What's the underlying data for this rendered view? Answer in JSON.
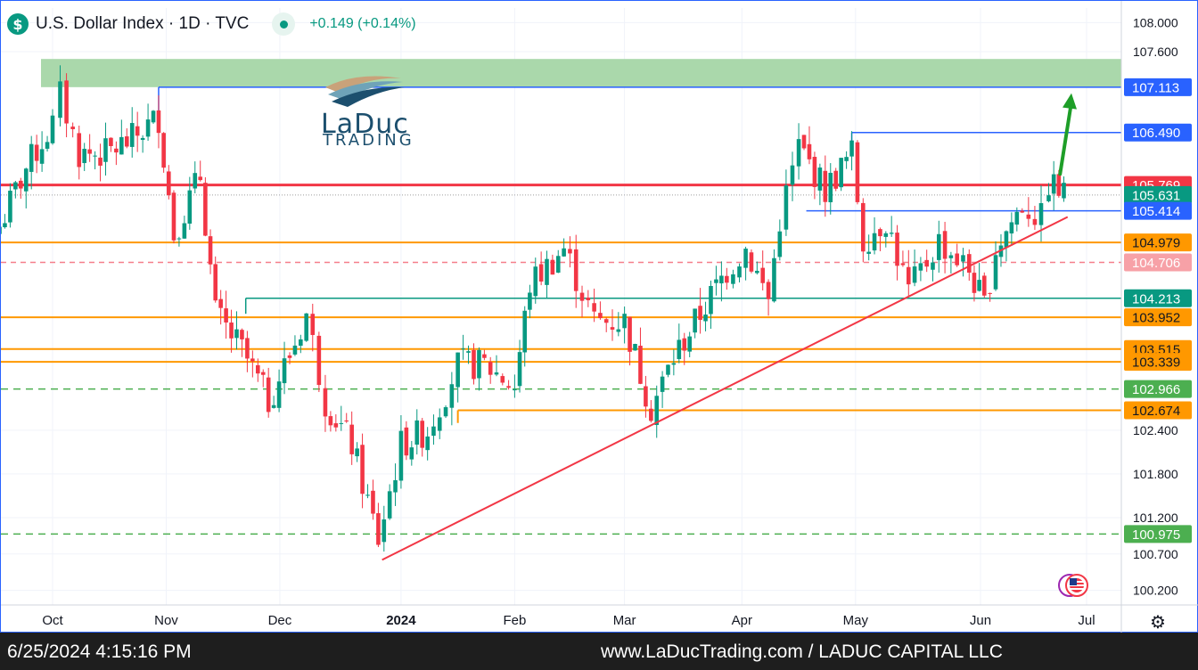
{
  "header": {
    "symbol_icon": "$",
    "title": "U.S. Dollar Index · 1D · TVC",
    "change": "+0.149 (+0.14%)"
  },
  "footer": {
    "timestamp": "6/25/2024 4:15:16 PM",
    "site": "www.LaDucTrading.com / LADUC CAPITAL LLC"
  },
  "logo": {
    "word": "LaDuc",
    "sub": "TRADING"
  },
  "icons": {
    "symbol": "dollar-icon",
    "status": "market-open-dot-icon",
    "flag": "us-flag-icon",
    "settings": "gear-icon"
  },
  "colors": {
    "up": "#089981",
    "down": "#f23645",
    "orange": "#ff9800",
    "blue": "#2962ff",
    "green_zone": "#a5d6a7",
    "red_line": "#f23645",
    "arrow": "#1e9e28"
  },
  "chart_data": {
    "type": "candlestick",
    "ylim": [
      100.0,
      108.2
    ],
    "y_ticks": [
      108.0,
      107.6,
      102.4,
      101.8,
      101.2,
      100.7,
      100.2
    ],
    "y_tick_labels": [
      "108.000",
      "107.600",
      "102.400",
      "101.800",
      "101.200",
      "100.700",
      "100.200"
    ],
    "x_labels": [
      {
        "label": "Oct",
        "date": "2023-10-02"
      },
      {
        "label": "Nov",
        "date": "2023-11-01"
      },
      {
        "label": "Dec",
        "date": "2023-12-01"
      },
      {
        "label": "2024",
        "date": "2024-01-02"
      },
      {
        "label": "Feb",
        "date": "2024-02-01"
      },
      {
        "label": "Mar",
        "date": "2024-03-01"
      },
      {
        "label": "Apr",
        "date": "2024-04-01"
      },
      {
        "label": "May",
        "date": "2024-05-01"
      },
      {
        "label": "Jun",
        "date": "2024-06-03"
      },
      {
        "label": "Jul",
        "date": "2024-07-01"
      }
    ],
    "price_labels": [
      {
        "value": "107.113",
        "color": "#2962ff"
      },
      {
        "value": "106.490",
        "color": "#2962ff"
      },
      {
        "value": "105.769",
        "color": "#f23645"
      },
      {
        "value": "105.631",
        "color": "#089981"
      },
      {
        "value": "105.414",
        "color": "#2962ff"
      },
      {
        "value": "104.979",
        "color": "#ff9800"
      },
      {
        "value": "104.706",
        "color": "#f7a1a7"
      },
      {
        "value": "104.213",
        "color": "#089981"
      },
      {
        "value": "103.952",
        "color": "#ff9800"
      },
      {
        "value": "103.515",
        "color": "#ff9800"
      },
      {
        "value": "103.339",
        "color": "#ff9800"
      },
      {
        "value": "102.966",
        "color": "#4caf50"
      },
      {
        "value": "102.674",
        "color": "#ff9800"
      },
      {
        "value": "100.975",
        "color": "#4caf50"
      }
    ],
    "resistance_zone": [
      107.113,
      107.5
    ],
    "trendline": {
      "start": {
        "date": "2023-12-28",
        "value": 100.62
      },
      "end": {
        "date": "2024-06-26",
        "value": 105.33
      }
    },
    "forecast_arrow": {
      "start": {
        "date": "2024-06-24",
        "value": 105.92
      },
      "end": {
        "date": "2024-06-27",
        "value": 107.03
      }
    },
    "closes": [
      {
        "date": "2023-09-18",
        "close": 105.2
      },
      {
        "date": "2023-09-25",
        "close": 106.0
      },
      {
        "date": "2023-10-02",
        "close": 106.6
      },
      {
        "date": "2023-10-04",
        "close": 107.0
      },
      {
        "date": "2023-10-09",
        "close": 106.2
      },
      {
        "date": "2023-10-16",
        "close": 106.2
      },
      {
        "date": "2023-10-23",
        "close": 106.4
      },
      {
        "date": "2023-10-30",
        "close": 106.7
      },
      {
        "date": "2023-11-03",
        "close": 105.1
      },
      {
        "date": "2023-11-10",
        "close": 105.9
      },
      {
        "date": "2023-11-14",
        "close": 104.0
      },
      {
        "date": "2023-11-21",
        "close": 103.5
      },
      {
        "date": "2023-11-28",
        "close": 102.8
      },
      {
        "date": "2023-12-05",
        "close": 103.6
      },
      {
        "date": "2023-12-08",
        "close": 104.0
      },
      {
        "date": "2023-12-13",
        "close": 102.8
      },
      {
        "date": "2023-12-20",
        "close": 102.2
      },
      {
        "date": "2023-12-27",
        "close": 100.9
      },
      {
        "date": "2024-01-02",
        "close": 102.2
      },
      {
        "date": "2024-01-09",
        "close": 102.4
      },
      {
        "date": "2024-01-17",
        "close": 103.3
      },
      {
        "date": "2024-01-24",
        "close": 103.3
      },
      {
        "date": "2024-02-01",
        "close": 103.0
      },
      {
        "date": "2024-02-05",
        "close": 104.4
      },
      {
        "date": "2024-02-14",
        "close": 104.9
      },
      {
        "date": "2024-02-22",
        "close": 103.9
      },
      {
        "date": "2024-03-01",
        "close": 103.9
      },
      {
        "date": "2024-03-08",
        "close": 102.7
      },
      {
        "date": "2024-03-14",
        "close": 103.4
      },
      {
        "date": "2024-03-21",
        "close": 104.0
      },
      {
        "date": "2024-03-28",
        "close": 104.6
      },
      {
        "date": "2024-04-02",
        "close": 104.9
      },
      {
        "date": "2024-04-08",
        "close": 104.2
      },
      {
        "date": "2024-04-11",
        "close": 105.3
      },
      {
        "date": "2024-04-16",
        "close": 106.3
      },
      {
        "date": "2024-04-23",
        "close": 105.7
      },
      {
        "date": "2024-04-30",
        "close": 106.2
      },
      {
        "date": "2024-05-03",
        "close": 105.0
      },
      {
        "date": "2024-05-09",
        "close": 105.3
      },
      {
        "date": "2024-05-15",
        "close": 104.3
      },
      {
        "date": "2024-05-23",
        "close": 105.0
      },
      {
        "date": "2024-05-31",
        "close": 104.6
      },
      {
        "date": "2024-06-04",
        "close": 104.1
      },
      {
        "date": "2024-06-07",
        "close": 104.9
      },
      {
        "date": "2024-06-14",
        "close": 105.5
      },
      {
        "date": "2024-06-19",
        "close": 105.3
      },
      {
        "date": "2024-06-21",
        "close": 105.8
      },
      {
        "date": "2024-06-25",
        "close": 105.631
      }
    ]
  }
}
